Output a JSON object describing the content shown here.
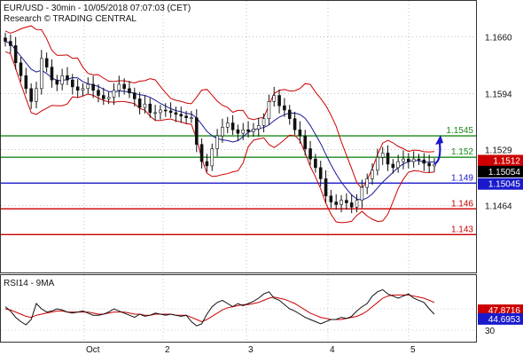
{
  "header": {
    "line1": "EUR/USD - 30min - 10/05/2018 07:07:03 (CET)",
    "line2": "Research © TRADING CENTRAL"
  },
  "colors": {
    "resistance": "#1a8a1a",
    "support_blue": "#1a1acc",
    "support_red": "#cc0000",
    "bollinger": "#cc0000",
    "moving_average": "#1a1a99",
    "arrow": "#1a1acc",
    "rsi_line": "#111111",
    "rsi_ma": "#cc0000"
  },
  "chart_data": [
    {
      "type": "candlestick",
      "title": "EUR/USD - 30min",
      "y_ticks": [
        1.166,
        1.1594,
        1.1529,
        1.1464
      ],
      "y_tick_labels": [
        "1.1660",
        "1.1594",
        "1.1529",
        "1.1464"
      ],
      "ylim": [
        1.1388,
        1.17
      ],
      "x_ticks": [
        "Oct",
        "2",
        "3",
        "4",
        "5"
      ],
      "grid": true,
      "indicators": [
        "Bollinger Bands",
        "Moving Average"
      ],
      "levels": [
        {
          "value": 1.1545,
          "label": "1.1545",
          "color": "#1a8a1a"
        },
        {
          "value": 1.152,
          "label": "1.152",
          "color": "#1a8a1a"
        },
        {
          "value": 1.149,
          "label": "1.149",
          "color": "#1a1acc"
        },
        {
          "value": 1.146,
          "label": "1.146",
          "color": "#cc0000"
        },
        {
          "value": 1.143,
          "label": "1.143",
          "color": "#cc0000"
        }
      ],
      "price_boxes": [
        {
          "label": "1.1512",
          "value": 1.1512,
          "bg": "#cc0000",
          "fg": "#ffffff"
        },
        {
          "label": "1.15054",
          "value": 1.15054,
          "bg": "#000000",
          "fg": "#ffffff"
        },
        {
          "label": "1.15045",
          "value": 1.15045,
          "bg": "#1a1acc",
          "fg": "#ffffff"
        }
      ],
      "close_series": [
        1.1655,
        1.165,
        1.163,
        1.1615,
        1.16,
        1.1585,
        1.16,
        1.1635,
        1.1625,
        1.161,
        1.1605,
        1.1615,
        1.161,
        1.1602,
        1.1598,
        1.16,
        1.1605,
        1.1598,
        1.1592,
        1.1588,
        1.159,
        1.1598,
        1.1605,
        1.16,
        1.1595,
        1.1588,
        1.1578,
        1.1582,
        1.1572,
        1.1572,
        1.1575,
        1.1574,
        1.1572,
        1.157,
        1.1568,
        1.1566,
        1.1566,
        1.1535,
        1.1515,
        1.151,
        1.153,
        1.1545,
        1.1555,
        1.156,
        1.1552,
        1.1548,
        1.1552,
        1.155,
        1.1553,
        1.1557,
        1.1565,
        1.1585,
        1.1592,
        1.158,
        1.1575,
        1.1565,
        1.1552,
        1.1545,
        1.153,
        1.1518,
        1.1508,
        1.1495,
        1.1475,
        1.1468,
        1.1465,
        1.147,
        1.1467,
        1.1462,
        1.147,
        1.1485,
        1.1495,
        1.1505,
        1.152,
        1.1525,
        1.1512,
        1.1508,
        1.1515,
        1.1518,
        1.1515,
        1.1518,
        1.1517,
        1.1513,
        1.151,
        1.1512
      ],
      "arrow": {
        "from": 1.1512,
        "to": 1.1545
      }
    },
    {
      "type": "line",
      "title": "RSI14 - 9MA",
      "y_ticks": [
        30
      ],
      "y_tick_labels": [
        "30"
      ],
      "ylim": [
        20,
        80
      ],
      "x_ticks": [
        "Oct",
        "2",
        "3",
        "4",
        "5"
      ],
      "series": [
        {
          "name": "RSI14",
          "color": "#111111"
        },
        {
          "name": "9MA",
          "color": "#cc0000"
        }
      ],
      "values": [
        52,
        48,
        42,
        38,
        35,
        40,
        55,
        50,
        47,
        48,
        50,
        49,
        47,
        46,
        47,
        48,
        46,
        44,
        44,
        45,
        47,
        50,
        48,
        46,
        44,
        42,
        45,
        43,
        44,
        46,
        45,
        44,
        45,
        44,
        43,
        44,
        38,
        34,
        36,
        45,
        52,
        56,
        58,
        55,
        52,
        55,
        53,
        55,
        57,
        60,
        64,
        66,
        60,
        58,
        54,
        50,
        48,
        45,
        42,
        40,
        38,
        36,
        38,
        40,
        40,
        42,
        41,
        43,
        48,
        52,
        55,
        62,
        66,
        68,
        64,
        62,
        60,
        62,
        64,
        60,
        58,
        56,
        50,
        45
      ],
      "ma_values": [
        50,
        49,
        47,
        45,
        43,
        42,
        44,
        45,
        46,
        47,
        48,
        48,
        47,
        47,
        47,
        47,
        47,
        46,
        45,
        45,
        46,
        47,
        47,
        47,
        46,
        45,
        45,
        44,
        44,
        45,
        45,
        45,
        45,
        44,
        44,
        44,
        42,
        40,
        38,
        40,
        43,
        46,
        49,
        51,
        52,
        53,
        54,
        54,
        55,
        56,
        58,
        60,
        61,
        60,
        59,
        57,
        55,
        52,
        49,
        46,
        44,
        42,
        41,
        40,
        40,
        40,
        41,
        42,
        43,
        45,
        48,
        52,
        56,
        60,
        62,
        63,
        63,
        63,
        63,
        62,
        61,
        60,
        58,
        56
      ],
      "price_boxes": [
        {
          "label": "47.8716",
          "value": 47.8716,
          "bg": "#cc0000",
          "fg": "#ffffff"
        },
        {
          "label": "44.6953",
          "value": 44.6953,
          "bg": "#1a1acc",
          "fg": "#ffffff"
        }
      ]
    }
  ]
}
